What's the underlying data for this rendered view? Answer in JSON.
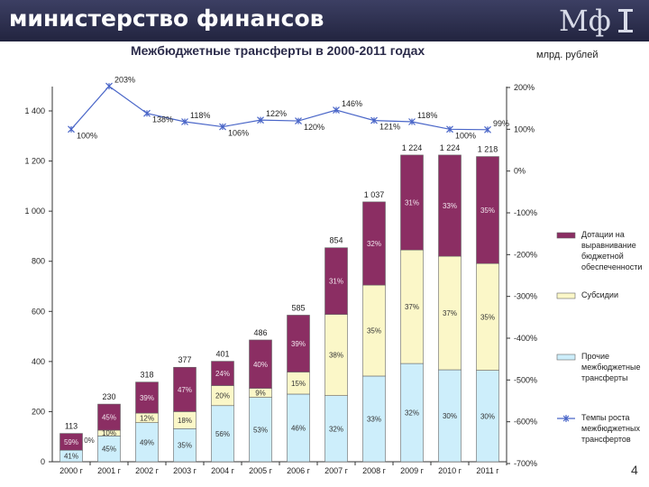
{
  "header": {
    "title": "министерство финансов",
    "logo_text": "Мф"
  },
  "subtitle": "Межбюджетные трансферты в 2000-2011 годах",
  "units": "млрд. рублей",
  "page_number": "4",
  "colors": {
    "header": "#2f3152",
    "dotations": "#8b2e63",
    "subsidies": "#fbf7c8",
    "other": "#cdeefb",
    "growth": "#4a66c8"
  },
  "chart_data": {
    "type": "bar",
    "stacked": true,
    "categories": [
      "2000 г",
      "2001 г",
      "2002 г",
      "2003 г",
      "2004 г",
      "2005 г",
      "2006 г",
      "2007 г",
      "2008 г",
      "2009 г",
      "2010 г",
      "2011 г"
    ],
    "totals": [
      113,
      230,
      318,
      377,
      401,
      486,
      585,
      854,
      1037,
      1224,
      1224,
      1218
    ],
    "y_left": {
      "ticks": [
        0,
        200,
        400,
        600,
        800,
        "1 000",
        "1 200",
        "1 400"
      ],
      "range": [
        0,
        1400
      ]
    },
    "y_right": {
      "ticks": [
        "-700%",
        "-600%",
        "-500%",
        "-400%",
        "-300%",
        "-200%",
        "-100%",
        "0%",
        "100%",
        "200%"
      ],
      "range": [
        -700,
        200
      ]
    },
    "series": [
      {
        "name": "Прочие межбюджетные трансферты",
        "values": [
          46,
          103,
          156,
          132,
          224,
          257,
          270,
          264,
          342,
          392,
          367,
          365
        ],
        "labels": [
          "41%",
          "45%",
          "49%",
          "35%",
          "56%",
          "53%",
          "46%",
          "32%",
          "33%",
          "32%",
          "30%",
          "30%"
        ]
      },
      {
        "name": "Субсидии",
        "values": [
          0,
          23,
          38,
          68,
          80,
          36,
          88,
          324,
          363,
          453,
          453,
          426
        ],
        "labels": [
          "0%",
          "10%",
          "12%",
          "18%",
          "20%",
          "9%",
          "15%",
          "38%",
          "35%",
          "37%",
          "37%",
          "35%"
        ]
      },
      {
        "name": "Дотации на выравнивание бюджетной обеспеченности",
        "values": [
          67,
          104,
          124,
          177,
          97,
          193,
          227,
          266,
          332,
          379,
          404,
          427
        ],
        "labels": [
          "59%",
          "45%",
          "39%",
          "47%",
          "24%",
          "40%",
          "39%",
          "31%",
          "32%",
          "31%",
          "33%",
          "35%"
        ]
      }
    ],
    "growth_series": {
      "name": "Темпы роста межбюджетных трансфертов",
      "values": [
        100,
        203,
        138,
        118,
        106,
        122,
        120,
        146,
        121,
        118,
        100,
        99
      ],
      "labels": [
        "100%",
        "203%",
        "138%",
        "118%",
        "106%",
        "122%",
        "120%",
        "146%",
        "121%",
        "118%",
        "100%",
        "99%"
      ]
    },
    "legend": [
      "Дотации на выравнивание бюджетной обеспеченности",
      "Субсидии",
      "Прочие межбюджетные трансферты",
      "Темпы роста межбюджетных трансфертов"
    ],
    "legend_position": "right",
    "grid": false
  }
}
